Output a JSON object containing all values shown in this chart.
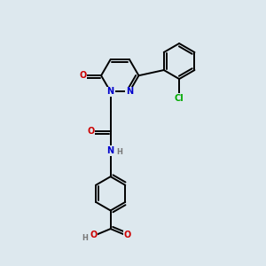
{
  "background_color": "#dde8ee",
  "bond_color": "#000000",
  "atom_colors": {
    "N": "#0000cc",
    "O": "#cc0000",
    "Cl": "#00aa00",
    "C": "#000000",
    "H": "#777777"
  },
  "fig_size": [
    3.0,
    3.0
  ],
  "dpi": 100
}
